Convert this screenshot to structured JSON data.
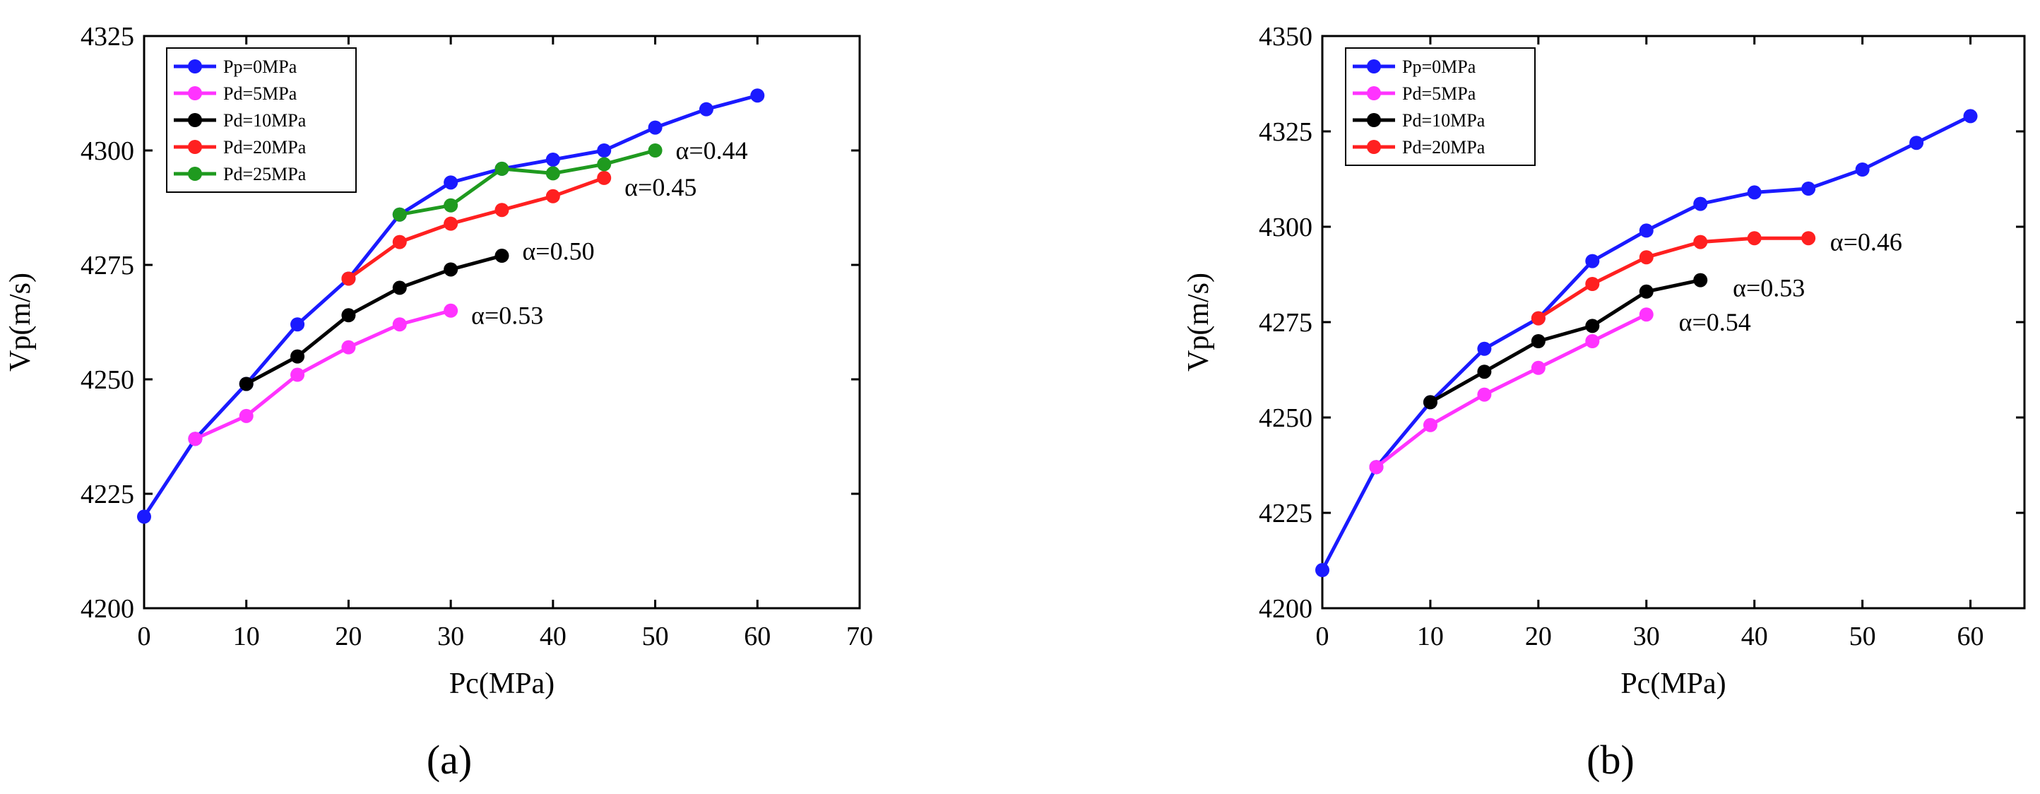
{
  "chart_data": [
    {
      "type": "line",
      "panel_label": "(a)",
      "xlabel": "Pc(MPa)",
      "ylabel": "Vp(m/s)",
      "xlim": [
        0,
        70
      ],
      "ylim": [
        4200,
        4325
      ],
      "xticks": [
        0,
        10,
        20,
        30,
        40,
        50,
        60,
        70
      ],
      "yticks": [
        4200,
        4225,
        4250,
        4275,
        4300,
        4325
      ],
      "legend_position": "top-left",
      "series": [
        {
          "name": "Pp=0MPa",
          "color": "#1a1aff",
          "x": [
            0,
            5,
            10,
            15,
            20,
            25,
            30,
            35,
            40,
            45,
            50,
            55,
            60
          ],
          "y": [
            4220,
            4237,
            4249,
            4262,
            4272,
            4286,
            4293,
            4296,
            4298,
            4300,
            4305,
            4309,
            4312
          ]
        },
        {
          "name": "Pd=5MPa",
          "color": "#ff33ff",
          "x": [
            5,
            10,
            15,
            20,
            25,
            30
          ],
          "y": [
            4237,
            4242,
            4251,
            4257,
            4262,
            4265
          ]
        },
        {
          "name": "Pd=10MPa",
          "color": "#000000",
          "x": [
            10,
            15,
            20,
            25,
            30,
            35
          ],
          "y": [
            4249,
            4255,
            4264,
            4270,
            4274,
            4277
          ]
        },
        {
          "name": "Pd=20MPa",
          "color": "#ff2020",
          "x": [
            20,
            25,
            30,
            35,
            40,
            45
          ],
          "y": [
            4272,
            4280,
            4284,
            4287,
            4290,
            4294
          ]
        },
        {
          "name": "Pd=25MPa",
          "color": "#1f9a1f",
          "x": [
            25,
            30,
            35,
            40,
            45,
            50
          ],
          "y": [
            4286,
            4288,
            4296,
            4295,
            4297,
            4300
          ]
        }
      ],
      "annotations": [
        {
          "text": "α=0.44",
          "x": 52,
          "y": 4300
        },
        {
          "text": "α=0.45",
          "x": 47,
          "y": 4292
        },
        {
          "text": "α=0.50",
          "x": 37,
          "y": 4278
        },
        {
          "text": "α=0.53",
          "x": 32,
          "y": 4264
        }
      ]
    },
    {
      "type": "line",
      "panel_label": "(b)",
      "xlabel": "Pc(MPa)",
      "ylabel": "Vp(m/s)",
      "xlim": [
        0,
        65
      ],
      "ylim": [
        4200,
        4350
      ],
      "xticks": [
        0,
        10,
        20,
        30,
        40,
        50,
        60
      ],
      "yticks": [
        4200,
        4225,
        4250,
        4275,
        4300,
        4325,
        4350
      ],
      "legend_position": "top-left",
      "series": [
        {
          "name": "Pp=0MPa",
          "color": "#1a1aff",
          "x": [
            0,
            5,
            10,
            15,
            20,
            25,
            30,
            35,
            40,
            45,
            50,
            55,
            60
          ],
          "y": [
            4210,
            4237,
            4254,
            4268,
            4276,
            4291,
            4299,
            4306,
            4309,
            4310,
            4315,
            4322,
            4329
          ]
        },
        {
          "name": "Pd=5MPa",
          "color": "#ff33ff",
          "x": [
            5,
            10,
            15,
            20,
            25,
            30
          ],
          "y": [
            4237,
            4248,
            4256,
            4263,
            4270,
            4277
          ]
        },
        {
          "name": "Pd=10MPa",
          "color": "#000000",
          "x": [
            10,
            15,
            20,
            25,
            30,
            35
          ],
          "y": [
            4254,
            4262,
            4270,
            4274,
            4283,
            4286
          ]
        },
        {
          "name": "Pd=20MPa",
          "color": "#ff2020",
          "x": [
            20,
            25,
            30,
            35,
            40,
            45
          ],
          "y": [
            4276,
            4285,
            4292,
            4296,
            4297,
            4297
          ]
        }
      ],
      "annotations": [
        {
          "text": "α=0.46",
          "x": 47,
          "y": 4296
        },
        {
          "text": "α=0.53",
          "x": 38,
          "y": 4284
        },
        {
          "text": "α=0.54",
          "x": 33,
          "y": 4275
        }
      ]
    }
  ]
}
